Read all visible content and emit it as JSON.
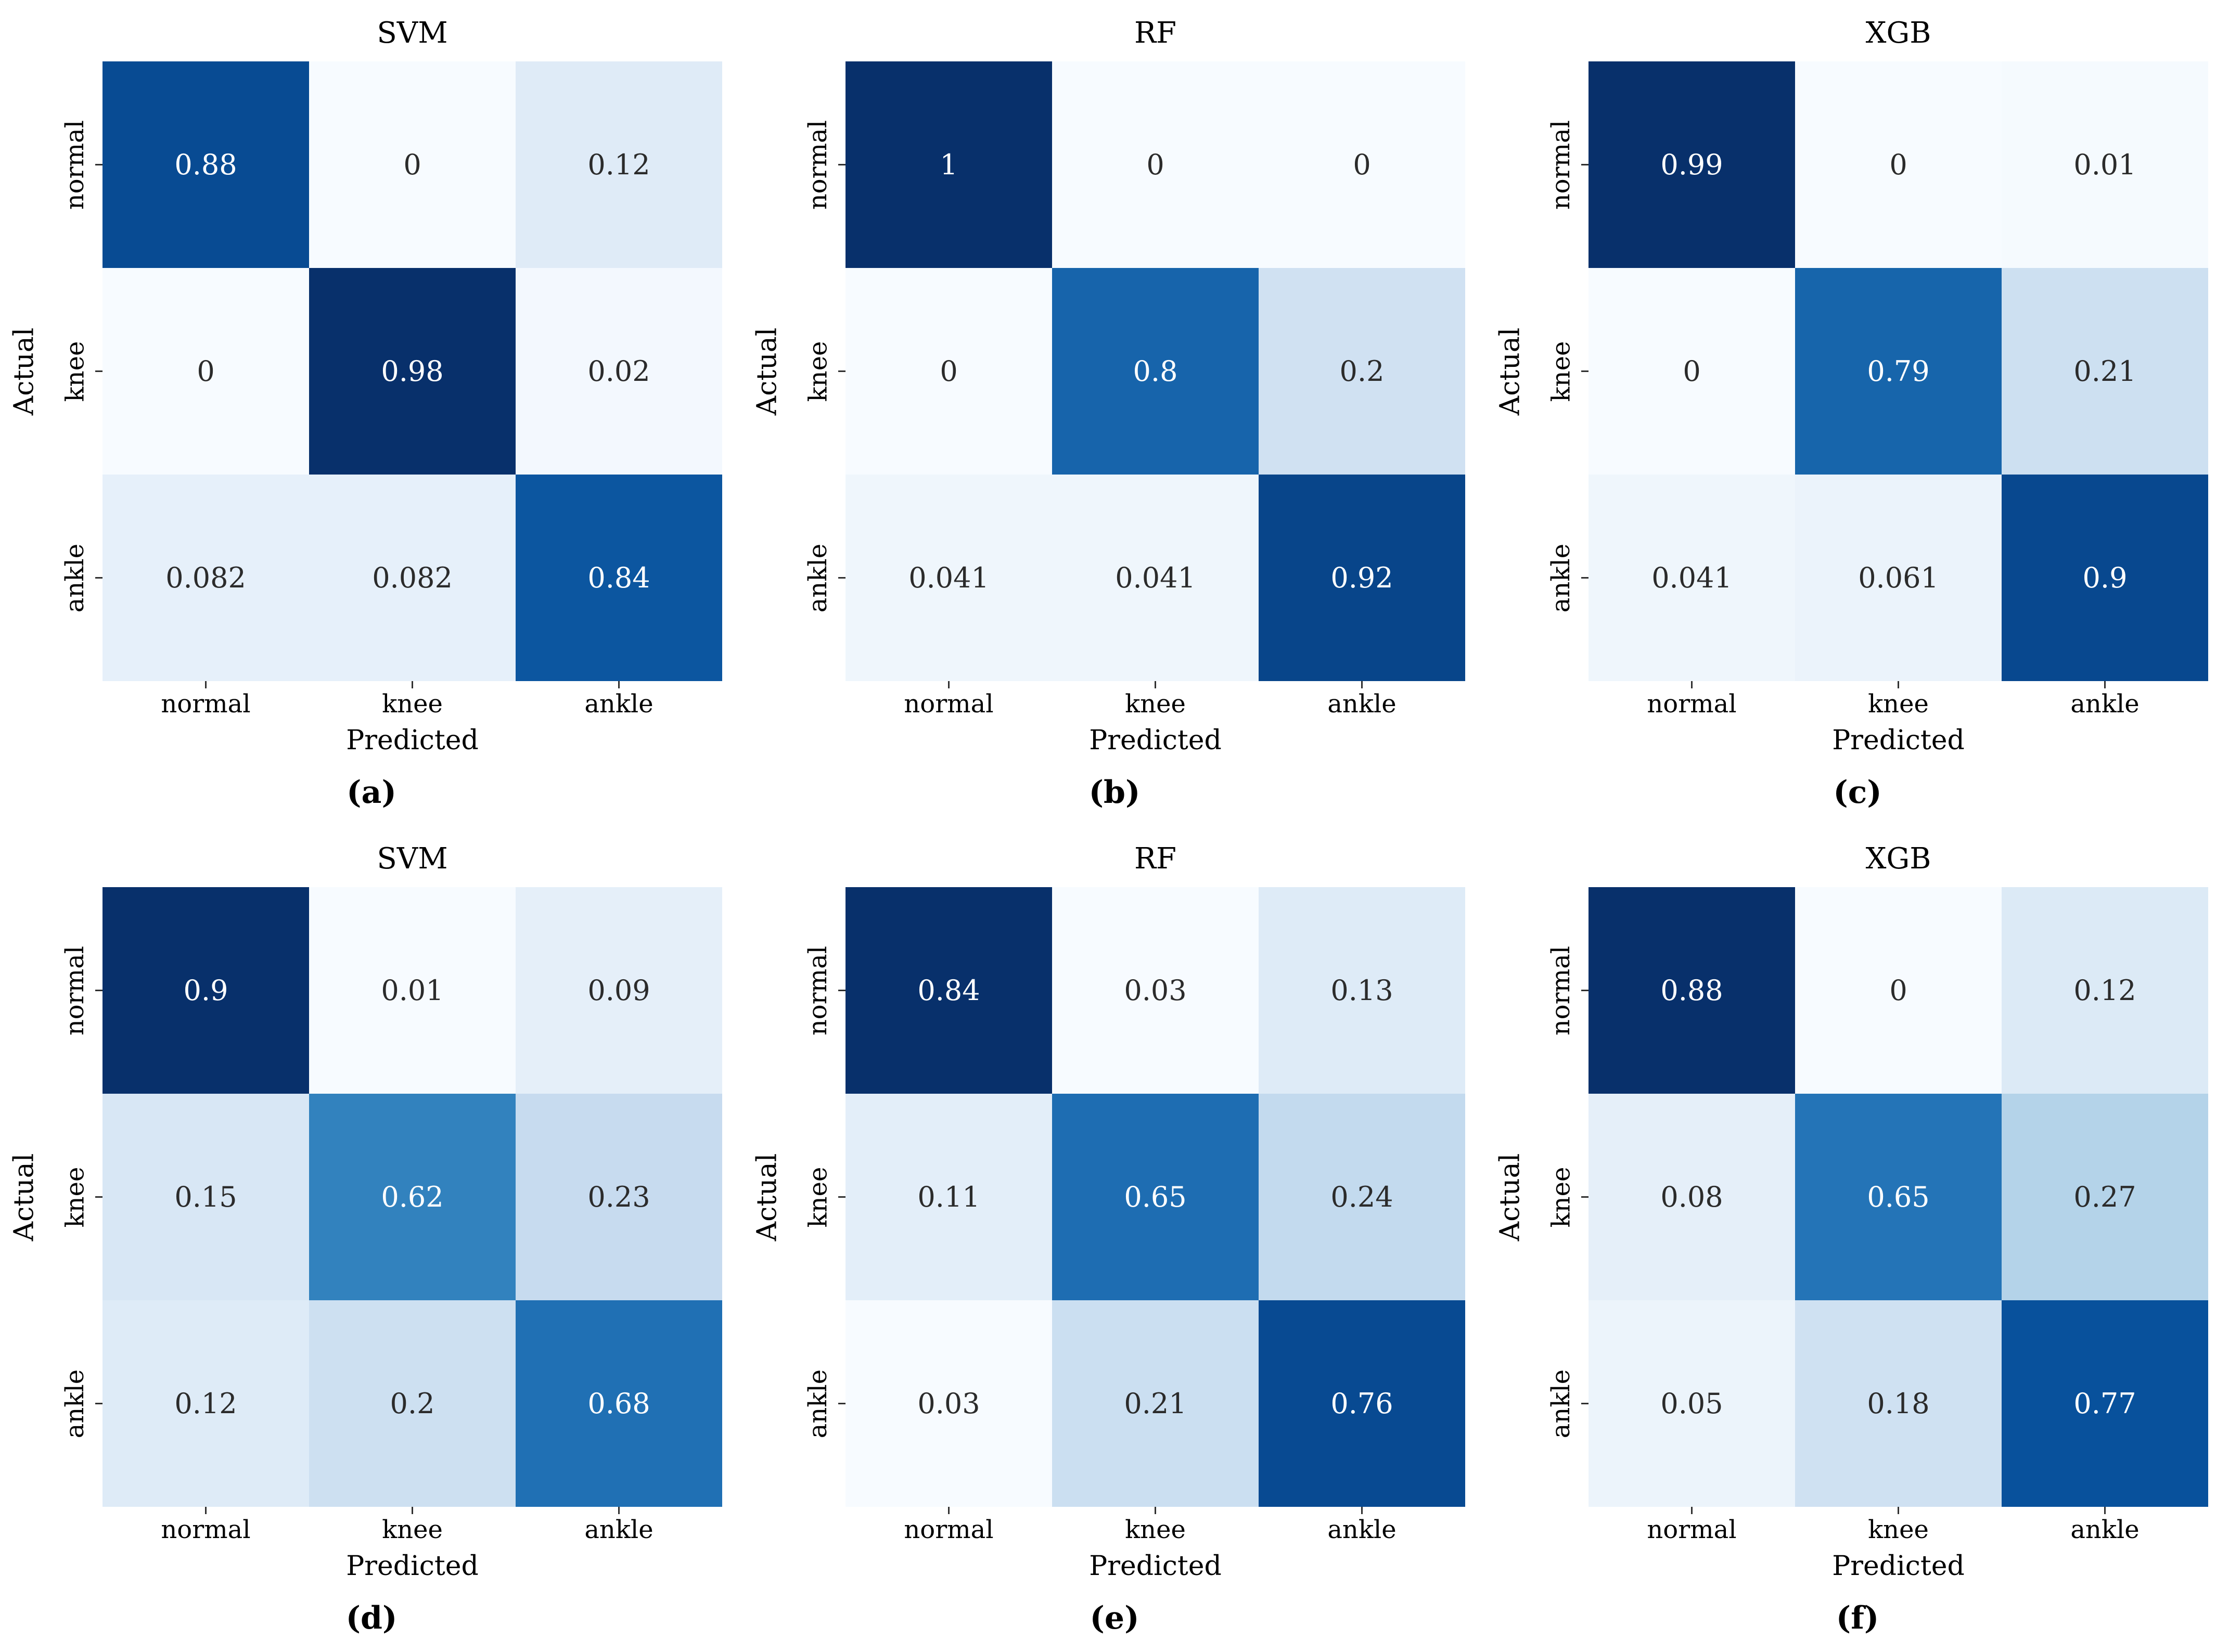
{
  "figure": {
    "background_color": "#ffffff",
    "annotation_dark_color": "#2b2b2b",
    "annotation_light_color": "#ffffff",
    "tick_color": "#303030",
    "colormap_low": "#f7fbff",
    "colormap_high": "#08306b"
  },
  "chart_data": [
    {
      "type": "heatmap",
      "title": "SVM",
      "caption": {
        "open": "(",
        "letter": "a",
        "close": ")"
      },
      "xlabel": "Predicted",
      "ylabel": "Actual",
      "x_categories": [
        "normal",
        "knee",
        "ankle"
      ],
      "y_categories": [
        "normal",
        "knee",
        "ankle"
      ],
      "colormap": "Blues",
      "values": [
        [
          0.88,
          0,
          0.12
        ],
        [
          0,
          0.98,
          0.02
        ],
        [
          0.082,
          0.082,
          0.84
        ]
      ],
      "labels": [
        [
          "0.88",
          "0",
          "0.12"
        ],
        [
          "0",
          "0.98",
          "0.02"
        ],
        [
          "0.082",
          "0.082",
          "0.84"
        ]
      ]
    },
    {
      "type": "heatmap",
      "title": "RF",
      "caption": {
        "open": "(",
        "letter": "b",
        "close": ")"
      },
      "xlabel": "Predicted",
      "ylabel": "Actual",
      "x_categories": [
        "normal",
        "knee",
        "ankle"
      ],
      "y_categories": [
        "normal",
        "knee",
        "ankle"
      ],
      "colormap": "Blues",
      "values": [
        [
          1,
          0,
          0
        ],
        [
          0,
          0.8,
          0.2
        ],
        [
          0.041,
          0.041,
          0.92
        ]
      ],
      "labels": [
        [
          "1",
          "0",
          "0"
        ],
        [
          "0",
          "0.8",
          "0.2"
        ],
        [
          "0.041",
          "0.041",
          "0.92"
        ]
      ]
    },
    {
      "type": "heatmap",
      "title": "XGB",
      "caption": {
        "open": "(",
        "letter": "c",
        "close": ")"
      },
      "xlabel": "Predicted",
      "ylabel": "Actual",
      "x_categories": [
        "normal",
        "knee",
        "ankle"
      ],
      "y_categories": [
        "normal",
        "knee",
        "ankle"
      ],
      "colormap": "Blues",
      "values": [
        [
          0.99,
          0,
          0.01
        ],
        [
          0,
          0.79,
          0.21
        ],
        [
          0.041,
          0.061,
          0.9
        ]
      ],
      "labels": [
        [
          "0.99",
          "0",
          "0.01"
        ],
        [
          "0",
          "0.79",
          "0.21"
        ],
        [
          "0.041",
          "0.061",
          "0.9"
        ]
      ]
    },
    {
      "type": "heatmap",
      "title": "SVM",
      "caption": {
        "open": "(",
        "letter": "d",
        "close": ")"
      },
      "xlabel": "Predicted",
      "ylabel": "Actual",
      "x_categories": [
        "normal",
        "knee",
        "ankle"
      ],
      "y_categories": [
        "normal",
        "knee",
        "ankle"
      ],
      "colormap": "Blues",
      "values": [
        [
          0.9,
          0.01,
          0.09
        ],
        [
          0.15,
          0.62,
          0.23
        ],
        [
          0.12,
          0.2,
          0.68
        ]
      ],
      "labels": [
        [
          "0.9",
          "0.01",
          "0.09"
        ],
        [
          "0.15",
          "0.62",
          "0.23"
        ],
        [
          "0.12",
          "0.2",
          "0.68"
        ]
      ]
    },
    {
      "type": "heatmap",
      "title": "RF",
      "caption": {
        "open": "(",
        "letter": "e",
        "close": ")"
      },
      "xlabel": "Predicted",
      "ylabel": "Actual",
      "x_categories": [
        "normal",
        "knee",
        "ankle"
      ],
      "y_categories": [
        "normal",
        "knee",
        "ankle"
      ],
      "colormap": "Blues",
      "values": [
        [
          0.84,
          0.03,
          0.13
        ],
        [
          0.11,
          0.65,
          0.24
        ],
        [
          0.03,
          0.21,
          0.76
        ]
      ],
      "labels": [
        [
          "0.84",
          "0.03",
          "0.13"
        ],
        [
          "0.11",
          "0.65",
          "0.24"
        ],
        [
          "0.03",
          "0.21",
          "0.76"
        ]
      ]
    },
    {
      "type": "heatmap",
      "title": "XGB",
      "caption": {
        "open": "(",
        "letter": "f",
        "close": ")"
      },
      "xlabel": "Predicted",
      "ylabel": "Actual",
      "x_categories": [
        "normal",
        "knee",
        "ankle"
      ],
      "y_categories": [
        "normal",
        "knee",
        "ankle"
      ],
      "colormap": "Blues",
      "values": [
        [
          0.88,
          0,
          0.12
        ],
        [
          0.08,
          0.65,
          0.27
        ],
        [
          0.05,
          0.18,
          0.77
        ]
      ],
      "labels": [
        [
          "0.88",
          "0",
          "0.12"
        ],
        [
          "0.08",
          "0.65",
          "0.27"
        ],
        [
          "0.05",
          "0.18",
          "0.77"
        ]
      ]
    }
  ]
}
